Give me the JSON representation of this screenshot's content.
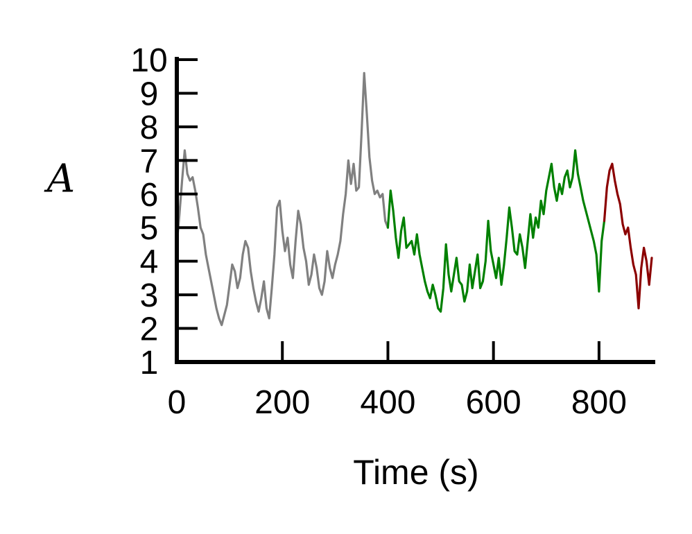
{
  "chart_data": {
    "type": "line",
    "title": "",
    "xlabel": "Time (s)",
    "ylabel": "A",
    "xlim": [
      0,
      900
    ],
    "ylim": [
      1,
      10
    ],
    "xticks": [
      0,
      200,
      400,
      600,
      800
    ],
    "xtick_labels": [
      "0",
      "200",
      "400",
      "600",
      "800"
    ],
    "yticks": [
      1,
      2,
      3,
      4,
      5,
      6,
      7,
      8,
      9,
      10
    ],
    "ytick_labels": [
      "1",
      "2",
      "3",
      "4",
      "5",
      "6",
      "7",
      "8",
      "9",
      "10"
    ],
    "grid": false,
    "legend": "none",
    "series": [
      {
        "color": "#808080",
        "x": [
          0,
          5,
          10,
          15,
          20,
          25,
          30,
          35,
          40,
          45,
          50,
          55,
          60,
          65,
          70,
          75,
          80,
          85,
          90,
          95,
          100,
          105,
          110,
          115,
          120,
          125,
          130,
          135,
          140,
          145,
          150,
          155,
          160,
          165,
          170,
          175,
          180,
          185,
          190,
          195,
          200,
          205,
          210,
          215,
          220,
          225,
          230,
          235,
          240,
          245,
          250,
          255,
          260,
          265,
          270,
          275,
          280,
          285,
          290,
          295,
          300,
          305,
          310,
          315,
          320,
          325,
          330,
          335,
          340,
          345,
          350,
          355,
          360,
          365,
          370,
          375,
          380,
          385,
          390,
          395,
          400
        ],
        "y": [
          4.5,
          5.4,
          6.4,
          7.3,
          6.6,
          6.4,
          6.5,
          6.1,
          5.6,
          5.0,
          4.8,
          4.2,
          3.8,
          3.4,
          3.0,
          2.6,
          2.3,
          2.1,
          2.4,
          2.7,
          3.3,
          3.9,
          3.7,
          3.2,
          3.5,
          4.2,
          4.6,
          4.4,
          3.7,
          3.2,
          2.8,
          2.5,
          2.9,
          3.4,
          2.6,
          2.3,
          3.2,
          4.2,
          5.6,
          5.8,
          4.9,
          4.3,
          4.7,
          3.9,
          3.5,
          4.6,
          5.5,
          5.1,
          4.4,
          4.0,
          3.3,
          3.6,
          4.2,
          3.8,
          3.2,
          3.0,
          3.4,
          4.3,
          3.8,
          3.5,
          3.9,
          4.2,
          4.6,
          5.4,
          6.0,
          7.0,
          6.3,
          6.9,
          6.1,
          6.2,
          7.8,
          9.6,
          8.4,
          7.1,
          6.4,
          6.0,
          6.1,
          5.9,
          6.0,
          5.2,
          5.0
        ],
        "name": ""
      },
      {
        "color": "#008000",
        "x": [
          400,
          405,
          410,
          415,
          420,
          425,
          430,
          435,
          440,
          445,
          450,
          455,
          460,
          465,
          470,
          475,
          480,
          485,
          490,
          495,
          500,
          505,
          510,
          515,
          520,
          525,
          530,
          535,
          540,
          545,
          550,
          555,
          560,
          565,
          570,
          575,
          580,
          585,
          590,
          595,
          600,
          605,
          610,
          615,
          620,
          625,
          630,
          635,
          640,
          645,
          650,
          655,
          660,
          665,
          670,
          675,
          680,
          685,
          690,
          695,
          700,
          705,
          710,
          715,
          720,
          725,
          730,
          735,
          740,
          745,
          750,
          755,
          760,
          765,
          770,
          775,
          780,
          785,
          790,
          795,
          800,
          805,
          810
        ],
        "y": [
          5.0,
          6.1,
          5.5,
          4.7,
          4.1,
          4.9,
          5.3,
          4.4,
          4.5,
          4.6,
          4.2,
          4.8,
          4.2,
          3.8,
          3.4,
          3.1,
          2.9,
          3.3,
          3.0,
          2.6,
          2.5,
          3.2,
          4.5,
          3.6,
          3.1,
          3.6,
          4.1,
          3.4,
          3.3,
          2.8,
          3.1,
          3.9,
          3.2,
          3.7,
          4.2,
          3.2,
          3.4,
          4.0,
          5.2,
          4.3,
          3.9,
          3.5,
          4.1,
          3.3,
          3.9,
          4.7,
          5.6,
          5.0,
          4.3,
          4.2,
          4.8,
          4.4,
          3.8,
          4.6,
          5.4,
          4.7,
          5.3,
          5.0,
          5.8,
          5.4,
          6.1,
          6.5,
          6.9,
          6.2,
          5.8,
          6.3,
          6.0,
          6.5,
          6.7,
          6.2,
          6.5,
          7.3,
          6.6,
          6.2,
          5.8,
          5.5,
          5.2,
          4.9,
          4.6,
          4.2,
          3.1,
          4.6,
          5.2
        ],
        "name": ""
      },
      {
        "color": "#8b0000",
        "x": [
          810,
          815,
          820,
          825,
          830,
          835,
          840,
          845,
          850,
          855,
          860,
          865,
          870,
          875,
          880,
          885,
          890,
          895,
          900
        ],
        "y": [
          5.2,
          6.2,
          6.7,
          6.9,
          6.4,
          6.0,
          5.7,
          5.1,
          4.8,
          5.0,
          4.4,
          3.9,
          3.6,
          2.6,
          3.8,
          4.4,
          4.0,
          3.3,
          4.1
        ],
        "name": ""
      }
    ]
  }
}
